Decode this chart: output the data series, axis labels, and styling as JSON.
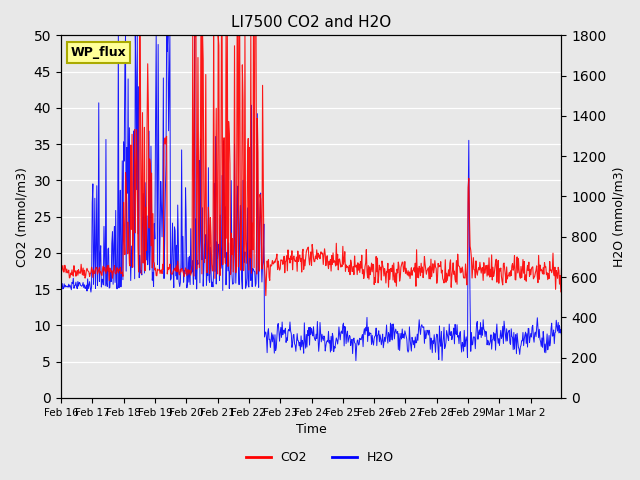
{
  "title": "LI7500 CO2 and H2O",
  "xlabel": "Time",
  "ylabel_left": "CO2 (mmol/m3)",
  "ylabel_right": "H2O (mmol/m3)",
  "ylim_left": [
    0,
    50
  ],
  "ylim_right": [
    0,
    1800
  ],
  "site_label": "WP_flux",
  "bg_color": "#e8e8e8",
  "co2_color": "#ff0000",
  "h2o_color": "#0000ff",
  "legend_co2": "CO2",
  "legend_h2o": "H2O"
}
